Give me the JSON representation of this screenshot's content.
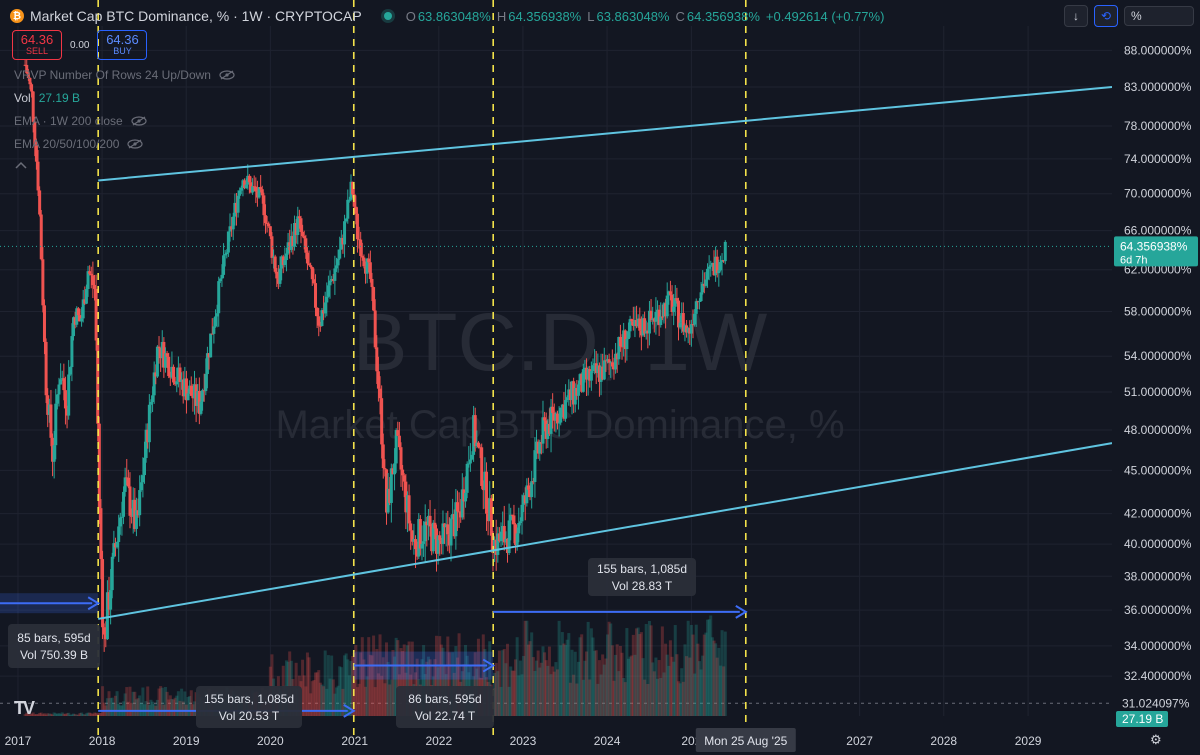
{
  "header": {
    "title": "Market Cap BTC Dominance, % · 1W · CRYPTOCAP",
    "o_label": "O",
    "o_value": "63.863048%",
    "h_label": "H",
    "h_value": "64.356938%",
    "l_label": "L",
    "l_value": "63.863048%",
    "c_label": "C",
    "c_value": "64.356938%",
    "change": "+0.492614 (+0.77%)"
  },
  "trade": {
    "sell_price": "64.36",
    "sell_label": "SELL",
    "spread": "0.00",
    "buy_price": "64.36",
    "buy_label": "BUY"
  },
  "indicators": {
    "vrvp": "VRVP Number Of Rows 24 Up/Down",
    "vol_label": "Vol",
    "vol_value": "27.19 B",
    "ema1": "EMA · 1W 200 close",
    "ema2": "EMA 20/50/100/200"
  },
  "toolbar": {
    "scale_value": "%"
  },
  "watermark": {
    "symbol": "BTC.D, 1W",
    "name": "Market Cap BTC Dominance, %"
  },
  "colors": {
    "background": "#131722",
    "up": "#26a69a",
    "down": "#ef5350",
    "trendline": "#5fc4e0",
    "cycle_line": "#f3e24a",
    "measure": "#3d6cf5"
  },
  "chart_data": {
    "type": "candlestick",
    "y_scale": "log",
    "ylim": [
      30.4,
      91.5
    ],
    "xlim": [
      "2016-10-15",
      "2029-12-31"
    ],
    "y_ticks": [
      "88.000000%",
      "83.000000%",
      "78.000000%",
      "74.000000%",
      "70.000000%",
      "66.000000%",
      "62.000000%",
      "58.000000%",
      "54.000000%",
      "51.000000%",
      "48.000000%",
      "45.000000%",
      "42.000000%",
      "40.000000%",
      "38.000000%",
      "36.000000%",
      "34.000000%",
      "32.400000%",
      "31.024097%"
    ],
    "x_ticks": [
      "2017",
      "2018",
      "2019",
      "2020",
      "2021",
      "2022",
      "2023",
      "2024",
      "202",
      "2027",
      "2028",
      "2029"
    ],
    "last_price_label": "64.356938%",
    "countdown": "6d 7h",
    "volume_label": "27.19 B",
    "date_cursor": "Mon 25 Aug '25",
    "price_path": [
      [
        "2017-02-01",
        86
      ],
      [
        "2017-03-01",
        82
      ],
      [
        "2017-04-01",
        70
      ],
      [
        "2017-05-01",
        52
      ],
      [
        "2017-06-01",
        46
      ],
      [
        "2017-07-01",
        53
      ],
      [
        "2017-08-01",
        50
      ],
      [
        "2017-09-01",
        58
      ],
      [
        "2017-10-01",
        57
      ],
      [
        "2017-11-01",
        62
      ],
      [
        "2017-12-01",
        60
      ],
      [
        "2017-12-20",
        42
      ],
      [
        "2018-01-08",
        34
      ],
      [
        "2018-02-10",
        38
      ],
      [
        "2018-04-10",
        44
      ],
      [
        "2018-06-01",
        41
      ],
      [
        "2018-09-01",
        55
      ],
      [
        "2018-12-01",
        52
      ],
      [
        "2019-03-01",
        50
      ],
      [
        "2019-06-01",
        61
      ],
      [
        "2019-09-01",
        72
      ],
      [
        "2019-12-01",
        69
      ],
      [
        "2020-02-01",
        61
      ],
      [
        "2020-05-01",
        67
      ],
      [
        "2020-08-01",
        57
      ],
      [
        "2020-11-01",
        64
      ],
      [
        "2020-12-20",
        71
      ],
      [
        "2021-01-10",
        66
      ],
      [
        "2021-03-10",
        61
      ],
      [
        "2021-05-20",
        42
      ],
      [
        "2021-07-01",
        47
      ],
      [
        "2021-09-10",
        40
      ],
      [
        "2021-11-01",
        41
      ],
      [
        "2022-01-10",
        40
      ],
      [
        "2022-04-01",
        42
      ],
      [
        "2022-06-01",
        48
      ],
      [
        "2022-09-01",
        40
      ],
      [
        "2022-12-01",
        41
      ],
      [
        "2023-01-15",
        43
      ],
      [
        "2023-04-01",
        48
      ],
      [
        "2023-07-01",
        50
      ],
      [
        "2023-10-01",
        52
      ],
      [
        "2024-01-01",
        53
      ],
      [
        "2024-04-01",
        56
      ],
      [
        "2024-07-01",
        57
      ],
      [
        "2024-10-01",
        59
      ],
      [
        "2024-12-20",
        56
      ],
      [
        "2025-02-01",
        60
      ],
      [
        "2025-04-01",
        62
      ],
      [
        "2025-06-01",
        64.36
      ]
    ],
    "trendlines": [
      {
        "from": [
          "2017-12-15",
          71.5
        ],
        "to": [
          "2029-12-31",
          83.0
        ]
      },
      {
        "from": [
          "2017-12-15",
          35.5
        ],
        "to": [
          "2029-12-31",
          47.0
        ]
      }
    ],
    "cycle_lines": [
      "2017-12-15",
      "2020-12-28",
      "2022-08-25",
      "2025-08-25"
    ],
    "measures": [
      {
        "from": [
          "2016-10-15",
          36.4
        ],
        "to": [
          "2017-12-15",
          36.4
        ],
        "label1": "85 bars, 595d",
        "label2": "Vol 750.39 B"
      },
      {
        "from": [
          "2017-12-15",
          30.65
        ],
        "to": [
          "2020-12-28",
          30.65
        ],
        "label1": "155 bars, 1,085d",
        "label2": "Vol 20.53 T"
      },
      {
        "from": [
          "2020-12-28",
          32.95
        ],
        "to": [
          "2022-08-25",
          32.95
        ],
        "label1": "86 bars, 595d",
        "label2": "Vol 22.74 T"
      },
      {
        "from": [
          "2022-08-25",
          35.9
        ],
        "to": [
          "2025-08-25",
          35.9
        ],
        "label1": "155 bars, 1,085d",
        "label2": "Vol 28.83 T"
      }
    ]
  }
}
